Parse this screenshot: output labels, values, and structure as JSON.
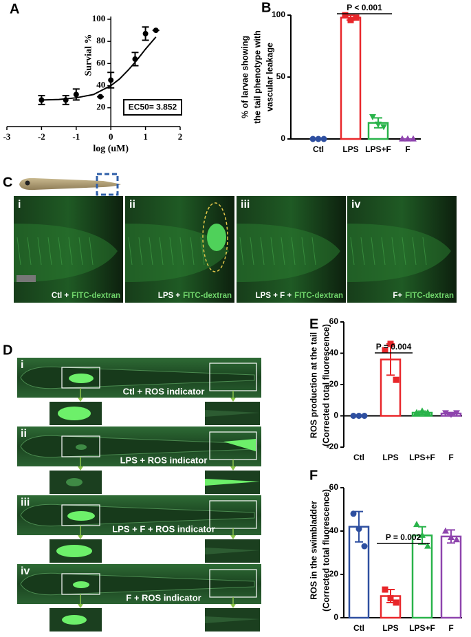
{
  "chart_data": [
    {
      "type": "dose_response",
      "panel": "A",
      "ylabel": [
        "Survial %"
      ],
      "xlabel": "log (uM)",
      "annotation": "EC50= 3.852",
      "x": [
        -2,
        -1.3,
        -1,
        -0.3,
        0,
        0.7,
        1,
        1.3
      ],
      "values": [
        27,
        27,
        32,
        30,
        45,
        64,
        87,
        90
      ],
      "errors": [
        4,
        4,
        5,
        0,
        7,
        6,
        6,
        0
      ],
      "fit": {
        "x": [
          -2,
          -1.5,
          -1,
          -0.5,
          0,
          0.25,
          0.5,
          0.75,
          1,
          1.3
        ],
        "values": [
          27,
          27.5,
          29,
          32,
          40,
          46,
          54,
          63,
          73,
          84
        ]
      },
      "color": "#000000",
      "xlim": [
        -3,
        2
      ],
      "xticks": [
        -3,
        -2,
        -1,
        0,
        1,
        2
      ],
      "ylim": [
        3,
        100
      ],
      "yticks": [
        20,
        40,
        60,
        80,
        100
      ]
    },
    {
      "type": "bar",
      "panel": "B",
      "ylabel": [
        "% of larvae showing",
        "the tail phenotype with",
        "vascular leakage"
      ],
      "annotation": "P < 0.001",
      "categories": [
        "Ctl",
        "LPS",
        "LPS+F",
        "F"
      ],
      "values": [
        0,
        98,
        13,
        0
      ],
      "errors": [
        0,
        2,
        4,
        0
      ],
      "points": [
        [
          0,
          0,
          0
        ],
        [
          100,
          96,
          98
        ],
        [
          18,
          12,
          10
        ],
        [
          0,
          0,
          0
        ]
      ],
      "colors": [
        "#2e4fa0",
        "#e8262a",
        "#29b34a",
        "#8e44ad"
      ],
      "markers": [
        "circle",
        "square",
        "triangle-down",
        "triangle"
      ],
      "ylim": [
        0,
        100
      ],
      "yticks": [
        0,
        50,
        100
      ]
    },
    {
      "type": "bar",
      "panel": "E",
      "ylabel": [
        "ROS production at the tail",
        "(Corrected total fluorescence)"
      ],
      "annotation": "P = 0.004",
      "categories": [
        "Ctl",
        "LPS",
        "LPS+F",
        "F"
      ],
      "values": [
        0,
        36,
        2,
        1.5
      ],
      "errors": [
        0,
        10,
        1,
        0.5
      ],
      "points": [
        [
          0,
          0,
          0
        ],
        [
          42,
          46,
          23
        ],
        [
          2,
          3,
          2
        ],
        [
          2,
          1,
          2
        ]
      ],
      "colors": [
        "#2e4fa0",
        "#e8262a",
        "#29b34a",
        "#8e44ad"
      ],
      "markers": [
        "circle",
        "square",
        "triangle",
        "triangle-down"
      ],
      "ylim": [
        -20,
        60
      ],
      "yticks": [
        -20,
        0,
        20,
        40,
        60
      ]
    },
    {
      "type": "bar",
      "panel": "F",
      "ylabel": [
        "ROS in the swimbladder",
        "(Corrected total fluorescence)"
      ],
      "annotation": "P = 0.002",
      "categories": [
        "Ctl",
        "LPS",
        "LPS+F",
        "F"
      ],
      "values": [
        42,
        10,
        38,
        37.5
      ],
      "errors": [
        7,
        3,
        4,
        3
      ],
      "points": [
        [
          48,
          41,
          33
        ],
        [
          13,
          9,
          7
        ],
        [
          43,
          38,
          33
        ],
        [
          40,
          37,
          36
        ]
      ],
      "colors": [
        "#2e4fa0",
        "#e8262a",
        "#29b34a",
        "#8e44ad"
      ],
      "markers": [
        "circle",
        "square",
        "triangle",
        "triangle"
      ],
      "ylim": [
        0,
        60
      ],
      "yticks": [
        0,
        20,
        40,
        60
      ]
    }
  ],
  "images": [
    {
      "panel": "C",
      "frames": [
        {
          "numeral": "i",
          "caption": "Ctl +",
          "stain": "FITC-dextran"
        },
        {
          "numeral": "ii",
          "caption": "LPS +",
          "stain": "FITC-dextran"
        },
        {
          "numeral": "iii",
          "caption": "LPS + F +",
          "stain": "FITC-dextran"
        },
        {
          "numeral": "iv",
          "caption": "F+",
          "stain": "FITC-dextran"
        }
      ]
    },
    {
      "panel": "D",
      "frames": [
        {
          "numeral": "i",
          "caption": "Ctl + ROS indicator"
        },
        {
          "numeral": "ii",
          "caption": "LPS + ROS indicator"
        },
        {
          "numeral": "iii",
          "caption": "LPS + F + ROS indicator"
        },
        {
          "numeral": "iv",
          "caption": "F + ROS indicator"
        }
      ]
    }
  ]
}
